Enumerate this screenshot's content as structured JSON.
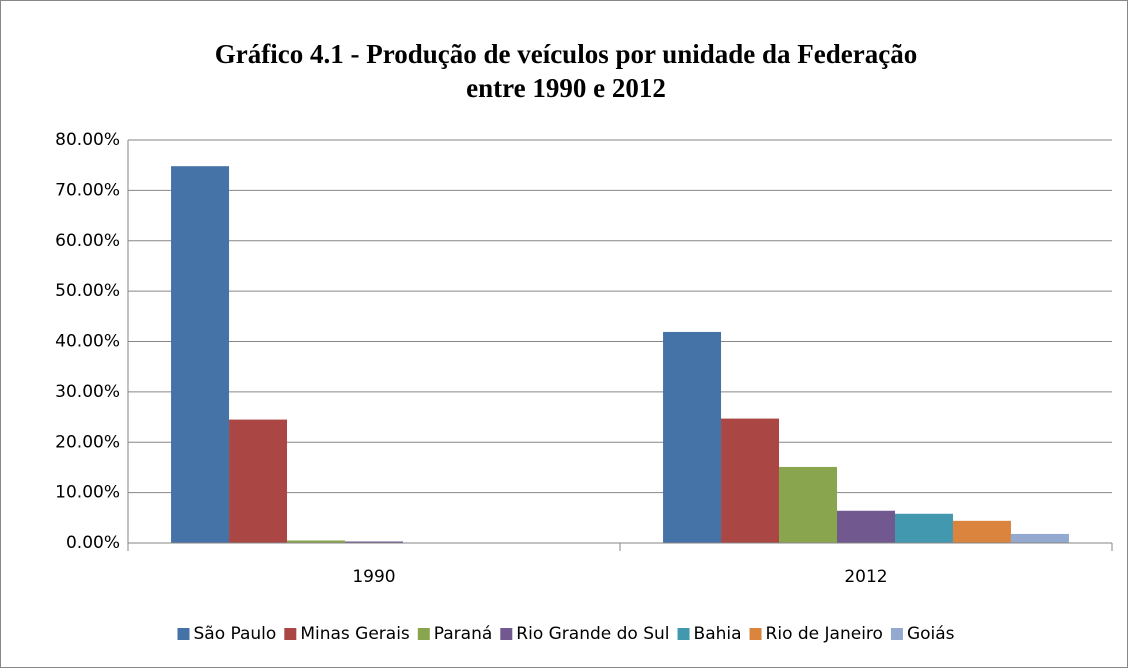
{
  "chart_data": {
    "type": "bar",
    "title": "Gráfico 4.1 - Produção de veículos por unidade da Federação",
    "subtitle": "entre 1990 e 2012",
    "categories": [
      "1990",
      "2012"
    ],
    "series": [
      {
        "name": "São Paulo",
        "color": "#4572a7",
        "values": [
          74.8,
          41.9
        ]
      },
      {
        "name": "Minas Gerais",
        "color": "#aa4643",
        "values": [
          24.5,
          24.7
        ]
      },
      {
        "name": "Paraná",
        "color": "#89a54e",
        "values": [
          0.5,
          15.1
        ]
      },
      {
        "name": "Rio Grande do Sul",
        "color": "#71588f",
        "values": [
          0.3,
          6.4
        ]
      },
      {
        "name": "Bahia",
        "color": "#4198af",
        "values": [
          0,
          5.8
        ]
      },
      {
        "name": "Rio de Janeiro",
        "color": "#db843d",
        "values": [
          0,
          4.4
        ]
      },
      {
        "name": "Goiás",
        "color": "#93a9cf",
        "values": [
          0,
          1.8
        ]
      }
    ],
    "ylim": [
      0,
      80
    ],
    "yticks": [
      {
        "value": 0,
        "label": "0.00%"
      },
      {
        "value": 10,
        "label": "10.00%"
      },
      {
        "value": 20,
        "label": "20.00%"
      },
      {
        "value": 30,
        "label": "30.00%"
      },
      {
        "value": 40,
        "label": "40.00%"
      },
      {
        "value": 50,
        "label": "50.00%"
      },
      {
        "value": 60,
        "label": "60.00%"
      },
      {
        "value": 70,
        "label": "70.00%"
      },
      {
        "value": 80,
        "label": "80.00%"
      }
    ],
    "grid": true,
    "legend": "bottom"
  }
}
